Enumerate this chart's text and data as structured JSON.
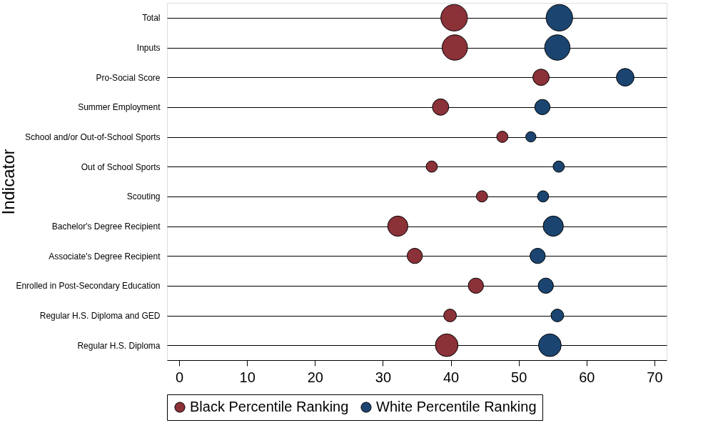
{
  "chart_data": {
    "type": "bubble",
    "orientation": "horizontal",
    "ylabel": "Indicator",
    "categories": [
      "Total",
      "Inputs",
      "Pro-Social Score",
      "Summer Employment",
      "School and/or Out-of-School Sports",
      "Out of School Sports",
      "Scouting",
      "Bachelor's Degree Recipient",
      "Associate's Degree Recipient",
      "Enrolled in Post-Secondary Education",
      "Regular H.S. Diploma and GED",
      "Regular H.S. Diploma"
    ],
    "series": [
      {
        "name": "Black Percentile Ranking",
        "color": "#8b3138",
        "values": [
          40.5,
          40.6,
          53.3,
          38.5,
          47.6,
          37.2,
          44.6,
          32.2,
          34.7,
          43.7,
          39.9,
          39.4
        ],
        "sizes": [
          1,
          0.91,
          0.38,
          0.38,
          0.18,
          0.18,
          0.18,
          0.58,
          0.33,
          0.33,
          0.23,
          0.73
        ]
      },
      {
        "name": "White Percentile Ranking",
        "color": "#1b4570",
        "values": [
          56.0,
          55.7,
          65.7,
          53.5,
          51.8,
          55.9,
          53.6,
          55.1,
          52.8,
          54.0,
          55.7,
          54.6
        ],
        "sizes": [
          1,
          0.91,
          0.44,
          0.33,
          0.15,
          0.18,
          0.18,
          0.58,
          0.33,
          0.33,
          0.23,
          0.73
        ]
      }
    ],
    "xlim": [
      -1.8,
      71.8
    ],
    "xticks": [
      0,
      10,
      20,
      30,
      40,
      50,
      60,
      70
    ],
    "grid": "y",
    "legend": "bottom"
  }
}
